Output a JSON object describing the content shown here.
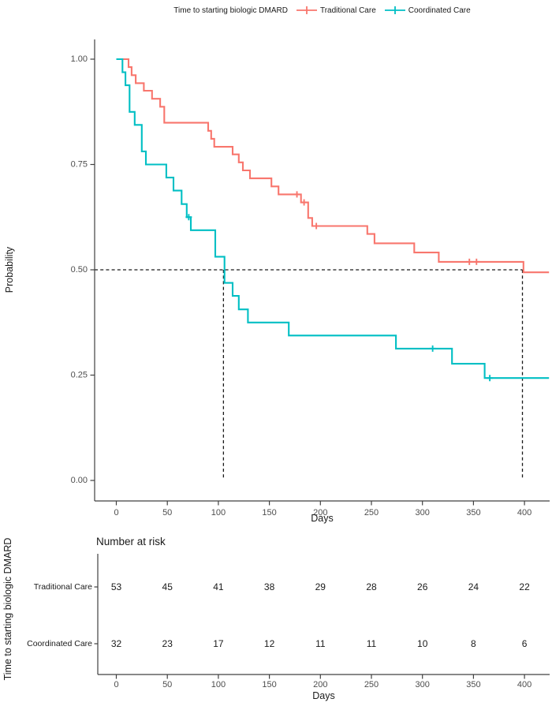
{
  "colors": {
    "traditional": "#f8766d",
    "coordinated": "#00bfc4",
    "axis": "#404040",
    "tick_label": "#4d4d4d",
    "dashed": "#1a1a1a"
  },
  "legend": {
    "title": "Time to starting biologic DMARD",
    "items": [
      {
        "label": "Traditional Care",
        "color": "#f8766d"
      },
      {
        "label": "Coordinated Care",
        "color": "#00bfc4"
      }
    ]
  },
  "chart_data": {
    "type": "line",
    "subtype": "kaplan-meier-step",
    "title": "Time to starting biologic DMARD",
    "xlabel": "Days",
    "ylabel": "Probability",
    "xlim": [
      0,
      424
    ],
    "ylim": [
      0,
      1
    ],
    "grid": false,
    "legend_position": "top",
    "x_ticks": [
      0,
      50,
      100,
      150,
      200,
      250,
      300,
      350,
      400
    ],
    "y_ticks": [
      {
        "label": "1.00",
        "value": 1.0
      },
      {
        "label": "0.75",
        "value": 0.75
      },
      {
        "label": "0.50",
        "value": 0.5
      },
      {
        "label": "0.25",
        "value": 0.25
      },
      {
        "label": "0.00",
        "value": 0.0
      }
    ],
    "series": [
      {
        "name": "Traditional Care",
        "color": "#f8766d",
        "steps": [
          [
            0,
            1.0
          ],
          [
            12,
            0.981
          ],
          [
            15,
            0.962
          ],
          [
            19,
            0.943
          ],
          [
            27,
            0.925
          ],
          [
            35,
            0.906
          ],
          [
            43,
            0.887
          ],
          [
            47,
            0.849
          ],
          [
            90,
            0.83
          ],
          [
            93,
            0.811
          ],
          [
            96,
            0.792
          ],
          [
            114,
            0.774
          ],
          [
            120,
            0.755
          ],
          [
            124,
            0.736
          ],
          [
            131,
            0.717
          ],
          [
            152,
            0.698
          ],
          [
            159,
            0.679
          ],
          [
            181,
            0.66
          ],
          [
            188,
            0.623
          ],
          [
            192,
            0.604
          ],
          [
            246,
            0.585
          ],
          [
            253,
            0.563
          ],
          [
            292,
            0.541
          ],
          [
            316,
            0.519
          ],
          [
            399,
            0.494
          ],
          [
            424,
            0.494
          ]
        ],
        "censors": [
          [
            177,
            0.679
          ],
          [
            184,
            0.66
          ],
          [
            196,
            0.604
          ],
          [
            346,
            0.519
          ],
          [
            353,
            0.519
          ]
        ]
      },
      {
        "name": "Coordinated Care",
        "color": "#00bfc4",
        "steps": [
          [
            0,
            1.0
          ],
          [
            6,
            0.969
          ],
          [
            9,
            0.938
          ],
          [
            13,
            0.875
          ],
          [
            18,
            0.844
          ],
          [
            25,
            0.781
          ],
          [
            29,
            0.75
          ],
          [
            49,
            0.719
          ],
          [
            56,
            0.688
          ],
          [
            64,
            0.656
          ],
          [
            69,
            0.625
          ],
          [
            73,
            0.594
          ],
          [
            97,
            0.531
          ],
          [
            106,
            0.469
          ],
          [
            114,
            0.438
          ],
          [
            120,
            0.406
          ],
          [
            129,
            0.375
          ],
          [
            169,
            0.344
          ],
          [
            274,
            0.313
          ],
          [
            329,
            0.277
          ],
          [
            361,
            0.243
          ],
          [
            424,
            0.243
          ]
        ],
        "censors": [
          [
            71,
            0.625
          ],
          [
            310,
            0.313
          ],
          [
            366,
            0.243
          ]
        ]
      }
    ],
    "medians": {
      "probability": 0.5,
      "times": [
        105,
        398
      ]
    }
  },
  "risk_table": {
    "title": "Number at risk",
    "axis_label": "Time to starting biologic DMARD",
    "xlabel": "Days",
    "times": [
      0,
      50,
      100,
      150,
      200,
      250,
      300,
      350,
      400
    ],
    "rows": [
      {
        "label": "Traditional Care",
        "color": "#f8766d",
        "counts": [
          53,
          45,
          41,
          38,
          29,
          28,
          26,
          24,
          22
        ]
      },
      {
        "label": "Coordinated Care",
        "color": "#00bfc4",
        "counts": [
          32,
          23,
          17,
          12,
          11,
          11,
          10,
          8,
          6
        ]
      }
    ]
  }
}
